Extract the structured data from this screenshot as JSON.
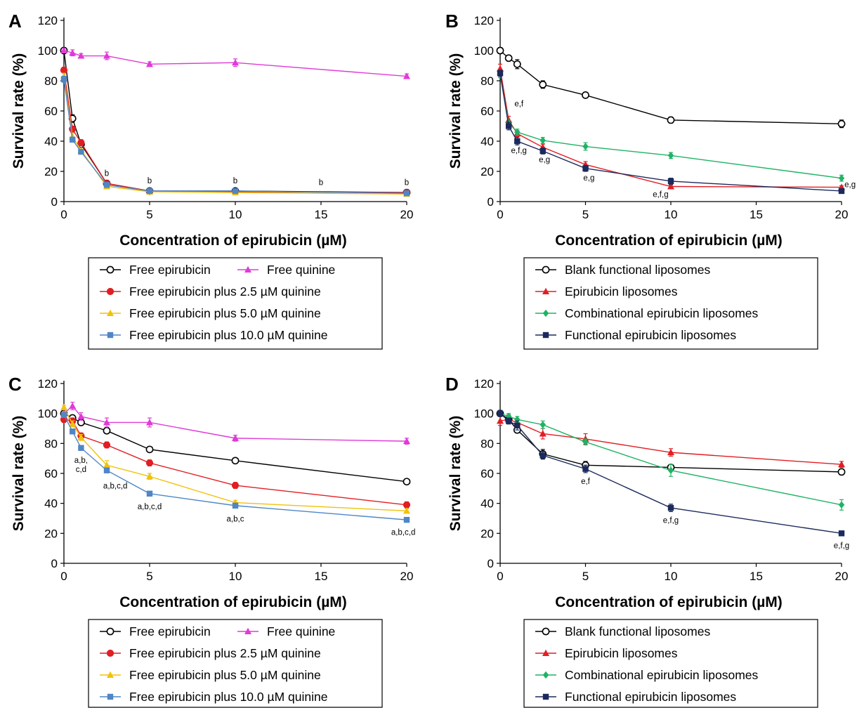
{
  "chart_data": [
    {
      "panel": "A",
      "type": "line",
      "xlabel": "Concentration of epirubicin (µM)",
      "ylabel": "Survival rate (%)",
      "xlim": [
        0,
        20
      ],
      "ylim": [
        0,
        120
      ],
      "xticks": [
        0,
        5,
        10,
        15,
        20
      ],
      "yticks": [
        0,
        20,
        40,
        60,
        80,
        100,
        120
      ],
      "grid": false,
      "legend_position": "bottom",
      "legend_columns": 2,
      "x": [
        0,
        0.5,
        1,
        2.5,
        5,
        10,
        20
      ],
      "series": [
        {
          "name": "Free epirubicin",
          "color": "#000000",
          "marker": "circle-open",
          "values": [
            100,
            55,
            38,
            12,
            7,
            7,
            6
          ],
          "err": [
            2,
            2.5,
            2,
            1,
            0.5,
            0.5,
            0.5
          ]
        },
        {
          "name": "Free quinine",
          "color": "#e03ad8",
          "marker": "triangle",
          "values": [
            100,
            98.5,
            96.5,
            96.5,
            91,
            92,
            83
          ],
          "err": [
            1.5,
            2,
            1.5,
            2.5,
            1.5,
            2.5,
            1.5
          ]
        },
        {
          "name": "Free epirubicin plus 2.5 µM quinine",
          "color": "#e11e23",
          "marker": "circle",
          "values": [
            87,
            48,
            39,
            12,
            7,
            6.5,
            6
          ],
          "err": [
            2,
            2,
            2,
            1,
            0.5,
            0.5,
            0.5
          ]
        },
        {
          "name": "Free epirubicin plus 5.0 µM quinine",
          "color": "#f0c20b",
          "marker": "triangle",
          "values": [
            83,
            43,
            34,
            10,
            6.5,
            6,
            5
          ],
          "err": [
            2,
            2,
            1.5,
            1,
            0.5,
            0.5,
            0.5
          ]
        },
        {
          "name": "Free epirubicin plus 10.0 µM quinine",
          "color": "#4f86c6",
          "marker": "square",
          "values": [
            81,
            41,
            33,
            11,
            7,
            7,
            5.5
          ],
          "err": [
            2,
            1.5,
            1.5,
            1,
            0.5,
            0.5,
            0.5
          ]
        }
      ],
      "annotations": [
        {
          "text": "b",
          "x": 2.5,
          "y": 17
        },
        {
          "text": "b",
          "x": 5,
          "y": 12
        },
        {
          "text": "b",
          "x": 10,
          "y": 12
        },
        {
          "text": "b",
          "x": 15,
          "y": 11
        },
        {
          "text": "b",
          "x": 20,
          "y": 11
        }
      ]
    },
    {
      "panel": "B",
      "type": "line",
      "xlabel": "Concentration of epirubicin (µM)",
      "ylabel": "Survival rate (%)",
      "xlim": [
        0,
        20
      ],
      "ylim": [
        0,
        120
      ],
      "xticks": [
        0,
        5,
        10,
        15,
        20
      ],
      "yticks": [
        0,
        20,
        40,
        60,
        80,
        100,
        120
      ],
      "grid": false,
      "legend_position": "bottom",
      "legend_columns": 1,
      "x": [
        0,
        0.5,
        1,
        2.5,
        5,
        10,
        20
      ],
      "series": [
        {
          "name": "Blank functional liposomes",
          "color": "#000000",
          "marker": "circle-open",
          "values": [
            100,
            95,
            91,
            77.5,
            70.5,
            54,
            51.5
          ],
          "err": [
            2,
            1.5,
            3,
            2.5,
            1.5,
            2,
            2.5
          ]
        },
        {
          "name": "Epirubicin liposomes",
          "color": "#e11e23",
          "marker": "triangle",
          "values": [
            88,
            54,
            45,
            36,
            24.5,
            10,
            9.5
          ],
          "err": [
            3,
            2.5,
            2,
            2,
            2,
            1,
            1
          ]
        },
        {
          "name": "Combinational epirubicin liposomes",
          "color": "#1fb364",
          "marker": "diamond",
          "values": [
            84,
            52,
            46,
            40.5,
            36.5,
            30.5,
            15.5
          ],
          "err": [
            2,
            2,
            2,
            2,
            2.5,
            2,
            2
          ]
        },
        {
          "name": "Functional epirubicin liposomes",
          "color": "#1b2a5c",
          "marker": "square",
          "values": [
            85,
            50,
            40,
            33.5,
            22,
            13.5,
            7
          ],
          "err": [
            2,
            2.5,
            2.5,
            2,
            2,
            2,
            1
          ]
        }
      ],
      "annotations": [
        {
          "text": "e,f",
          "x": 1.1,
          "y": 63
        },
        {
          "text": "e,f,g",
          "x": 1.1,
          "y": 32
        },
        {
          "text": "e,g",
          "x": 2.6,
          "y": 26
        },
        {
          "text": "e,g",
          "x": 5.2,
          "y": 14
        },
        {
          "text": "e,f,g",
          "x": 9.4,
          "y": 3
        },
        {
          "text": "e,g",
          "x": 20.5,
          "y": 9.5
        }
      ]
    },
    {
      "panel": "C",
      "type": "line",
      "xlabel": "Concentration of epirubicin (µM)",
      "ylabel": "Survival rate (%)",
      "xlim": [
        0,
        20
      ],
      "ylim": [
        0,
        120
      ],
      "xticks": [
        0,
        5,
        10,
        15,
        20
      ],
      "yticks": [
        0,
        20,
        40,
        60,
        80,
        100,
        120
      ],
      "grid": false,
      "legend_position": "bottom",
      "legend_columns": 2,
      "x": [
        0,
        0.5,
        1,
        2.5,
        5,
        10,
        20
      ],
      "series": [
        {
          "name": "Free epirubicin",
          "color": "#000000",
          "marker": "circle-open",
          "values": [
            100,
            97,
            94,
            88.5,
            76,
            68.5,
            54.5
          ],
          "err": [
            1.5,
            1.5,
            2,
            2,
            1.5,
            1,
            1
          ]
        },
        {
          "name": "Free quinine",
          "color": "#e03ad8",
          "marker": "triangle",
          "values": [
            100,
            105,
            98,
            94,
            94,
            83.5,
            81.5
          ],
          "err": [
            3,
            2.5,
            2.5,
            3,
            3,
            2,
            2
          ]
        },
        {
          "name": "Free epirubicin plus 2.5 µM quinine",
          "color": "#e11e23",
          "marker": "circle",
          "values": [
            96,
            95,
            85,
            79,
            67,
            52,
            39
          ],
          "err": [
            2,
            2,
            2,
            2,
            2,
            2,
            2
          ]
        },
        {
          "name": "Free epirubicin plus 5.0 µM quinine",
          "color": "#f0c20b",
          "marker": "triangle",
          "values": [
            104,
            93,
            84,
            65.5,
            58,
            40.5,
            35
          ],
          "err": [
            1.5,
            2,
            2,
            3,
            2,
            1.5,
            1.5
          ]
        },
        {
          "name": "Free epirubicin plus 10.0 µM quinine",
          "color": "#4f86c6",
          "marker": "square",
          "values": [
            99,
            88,
            77,
            62,
            46.5,
            38.5,
            29
          ],
          "err": [
            1.5,
            1.5,
            1.5,
            1.5,
            1,
            1,
            1
          ]
        }
      ],
      "annotations": [
        {
          "text": "a,b,",
          "x": 1,
          "y": 67
        },
        {
          "text": "c,d",
          "x": 1,
          "y": 61
        },
        {
          "text": "a,b,c,d",
          "x": 3,
          "y": 50
        },
        {
          "text": "a,b,c,d",
          "x": 5,
          "y": 36
        },
        {
          "text": "a,b,c",
          "x": 10,
          "y": 28
        },
        {
          "text": "a,b,c,d",
          "x": 19.8,
          "y": 19
        }
      ]
    },
    {
      "panel": "D",
      "type": "line",
      "xlabel": "Concentration of epirubicin (µM)",
      "ylabel": "Survival rate (%)",
      "xlim": [
        0,
        20
      ],
      "ylim": [
        0,
        120
      ],
      "xticks": [
        0,
        5,
        10,
        15,
        20
      ],
      "yticks": [
        0,
        20,
        40,
        60,
        80,
        100,
        120
      ],
      "grid": false,
      "legend_position": "bottom",
      "legend_columns": 1,
      "x": [
        0,
        0.5,
        1,
        2.5,
        5,
        10,
        20
      ],
      "series": [
        {
          "name": "Blank functional liposomes",
          "color": "#000000",
          "marker": "circle-open",
          "values": [
            100,
            96,
            89,
            73,
            65.5,
            64,
            61
          ],
          "err": [
            2,
            3,
            2,
            3,
            2.5,
            2,
            2
          ]
        },
        {
          "name": "Epirubicin liposomes",
          "color": "#e11e23",
          "marker": "triangle",
          "values": [
            95,
            96,
            94,
            86.5,
            83,
            74,
            66
          ],
          "err": [
            3,
            2,
            2,
            3.5,
            3.5,
            2.5,
            2
          ]
        },
        {
          "name": "Combinational epirubicin liposomes",
          "color": "#1fb364",
          "marker": "diamond",
          "values": [
            100,
            98,
            96,
            92.5,
            81,
            62,
            39
          ],
          "err": [
            2,
            2,
            2,
            2.5,
            2,
            4,
            3.5
          ]
        },
        {
          "name": "Functional epirubicin liposomes",
          "color": "#1b2a5c",
          "marker": "square",
          "values": [
            100,
            95,
            92,
            72,
            63,
            37,
            20
          ],
          "err": [
            2,
            2,
            3,
            2.5,
            2.5,
            2.5,
            1.5
          ]
        }
      ],
      "annotations": [
        {
          "text": "e,f",
          "x": 5,
          "y": 53
        },
        {
          "text": "e,f,g",
          "x": 10,
          "y": 27
        },
        {
          "text": "e,f,g",
          "x": 20,
          "y": 10
        }
      ]
    }
  ]
}
